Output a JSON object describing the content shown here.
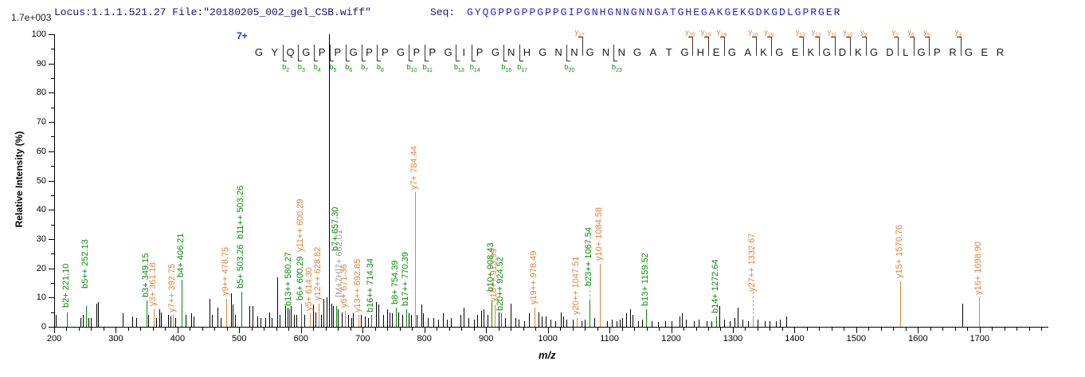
{
  "header": {
    "locus_file": "Locus:1.1.1.521.27 File:\"20180205_002_gel_CSB.wiff\"",
    "seq_label": "Seq:",
    "sequence": "GYQGPPGPPGPPGIPGNHGNNGNNGATGHEGAKGEKGDKGDLGPRGER"
  },
  "y_axis": {
    "title": "Relative  Intensity  (%)",
    "max_scale_label": "1.7e+003",
    "tick_labels": [
      0,
      10,
      20,
      30,
      40,
      50,
      60,
      70,
      80,
      90,
      100
    ],
    "minor_step": 5
  },
  "x_axis": {
    "title": "m/z",
    "tick_labels": [
      200,
      300,
      400,
      500,
      600,
      700,
      800,
      900,
      1000,
      1100,
      1200,
      1300,
      1400,
      1500,
      1600,
      1700
    ],
    "minor_step": 20,
    "range": [
      200,
      1810
    ]
  },
  "chart_data": {
    "type": "bar",
    "subtype": "ms2-spectrum",
    "title": "",
    "xlabel": "m/z",
    "ylabel": "Relative Intensity (%)",
    "xlim": [
      200,
      1810
    ],
    "ylim": [
      0,
      100
    ],
    "intensity_full_scale": "1.7e+003",
    "precursor_charge": "7+",
    "colors": {
      "b_ion": "#0b8a0b",
      "y_ion": "#e2823c",
      "precursor_label": "#9a9a9a",
      "peak": "#000000"
    },
    "labeled_peaks": [
      {
        "mz": 221.1,
        "pct": 5,
        "color": "green",
        "label": "b2+ 221.10",
        "lb": 6.5
      },
      {
        "mz": 252.13,
        "pct": 7,
        "color": "green",
        "label": "b5++ 252.13",
        "lb": 13
      },
      {
        "mz": 349.15,
        "pct": 9,
        "color": "green",
        "label": "b3+ 349.15",
        "lb": 10
      },
      {
        "mz": 361.18,
        "pct": 6,
        "color": "orange",
        "label": "y3+ 361.18",
        "lb": 7
      },
      {
        "mz": 392.75,
        "pct": 4,
        "color": "orange",
        "label": "y7++ 392.75",
        "lb": 5
      },
      {
        "mz": 406.21,
        "pct": 16,
        "color": "green",
        "label": "b4+ 406.21",
        "lb": 17
      },
      {
        "mz": 478.75,
        "pct": 9.5,
        "color": "orange",
        "label": "y9++ 478.75",
        "lb": 10.5
      },
      {
        "mz": 503.26,
        "pct": 12,
        "color": "green",
        "label": "b5+ 503.26",
        "lb": 13
      },
      {
        "mz": 503.26,
        "pct": 0,
        "color": "green",
        "label": "b11++ 503.26",
        "lb": 30,
        "noline": true
      },
      {
        "mz": 580.27,
        "pct": 6,
        "color": "green",
        "label": "b13++ 580.27",
        "lb": 7
      },
      {
        "mz": 600.29,
        "pct": 8,
        "color": "green",
        "label": "b6+ 600.29",
        "lb": 9
      },
      {
        "mz": 600.29,
        "pct": 0,
        "color": "orange",
        "label": "y11++ 600.29",
        "lb": 25.5,
        "noline": true
      },
      {
        "mz": 614.3,
        "pct": 4.5,
        "color": "orange",
        "label": "y5+ 614.30",
        "lb": 5.5
      },
      {
        "mz": 628.82,
        "pct": 8,
        "color": "orange",
        "label": "y12++ 628.82",
        "lb": 9
      },
      {
        "mz": 657.3,
        "pct": 7,
        "color": "green",
        "label": "b7+ 657.30",
        "lb": 26
      },
      {
        "mz": 663.5,
        "pct": 0,
        "color": "gray",
        "label": "[M+7H]7+ 662.01",
        "lb": 10,
        "noline": true
      },
      {
        "mz": 671.36,
        "pct": 5.5,
        "color": "orange",
        "label": "y6+ 671.36",
        "lb": 6.5
      },
      {
        "mz": 692.85,
        "pct": 4,
        "color": "orange",
        "label": "y13++ 692.85",
        "lb": 5
      },
      {
        "mz": 714.34,
        "pct": 4,
        "color": "green",
        "label": "b16++ 714.34",
        "lb": 5
      },
      {
        "mz": 754.39,
        "pct": 6.5,
        "color": "green",
        "label": "b8+ 754.39",
        "lb": 7.5
      },
      {
        "mz": 770.39,
        "pct": 6,
        "color": "green",
        "label": "b17++ 770.39",
        "lb": 7
      },
      {
        "mz": 784.44,
        "pct": 46,
        "color": "orange",
        "label": "y7+ 784.44",
        "lb": 47
      },
      {
        "mz": 908.43,
        "pct": 9,
        "color": "green",
        "label": "b10+ 908.43",
        "lb": 12
      },
      {
        "mz": 913.99,
        "pct": 7.5,
        "color": "orange",
        "label": "y18++ 913.99",
        "lb": 8.5
      },
      {
        "mz": 924.52,
        "pct": 4.5,
        "color": "green",
        "label": "b20++ 924.52",
        "lb": 5.5
      },
      {
        "mz": 978.49,
        "pct": 6.5,
        "color": "orange",
        "label": "y19++ 978.49",
        "lb": 7.5
      },
      {
        "mz": 1047.51,
        "pct": 3,
        "color": "orange",
        "label": "y20++ 1047.51",
        "lb": 4
      },
      {
        "mz": 1067.54,
        "pct": 9,
        "color": "green",
        "label": "b23++ 1067.54",
        "lb": 14,
        "leader": true
      },
      {
        "mz": 1084.58,
        "pct": 21.5,
        "color": "orange",
        "label": "y10+ 1084.58",
        "lb": 22.5
      },
      {
        "mz": 1159.52,
        "pct": 6,
        "color": "green",
        "label": "b13+ 1159.52",
        "lb": 7
      },
      {
        "mz": 1272.64,
        "pct": 3.5,
        "color": "green",
        "label": "b14+ 1272.64",
        "lb": 4.5
      },
      {
        "mz": 1332.67,
        "pct": 3,
        "color": "orange",
        "label": "y27++ 1332.67",
        "lb": 12,
        "leader": true
      },
      {
        "mz": 1570.76,
        "pct": 15.5,
        "color": "orange",
        "label": "y15+ 1570.76",
        "lb": 16.5
      },
      {
        "mz": 1698.9,
        "pct": 10,
        "color": "orange",
        "label": "y16+ 1698.90",
        "lb": 11
      }
    ],
    "unlabeled_peaks": [
      [
        203,
        4
      ],
      [
        243,
        3
      ],
      [
        247,
        4
      ],
      [
        256,
        3
      ],
      [
        259,
        3
      ],
      [
        268,
        8
      ],
      [
        271,
        8.5
      ],
      [
        311,
        4.5
      ],
      [
        327,
        3.5
      ],
      [
        333,
        3
      ],
      [
        352,
        4
      ],
      [
        365,
        3
      ],
      [
        370,
        6
      ],
      [
        373,
        5
      ],
      [
        385,
        4
      ],
      [
        389,
        3.5
      ],
      [
        396,
        3
      ],
      [
        413,
        4
      ],
      [
        422,
        4.5
      ],
      [
        426,
        3.5
      ],
      [
        452,
        9.5
      ],
      [
        456,
        4
      ],
      [
        465,
        6.5
      ],
      [
        470,
        3
      ],
      [
        486,
        11.5
      ],
      [
        489,
        7.5
      ],
      [
        493,
        4
      ],
      [
        516,
        7
      ],
      [
        522,
        7
      ],
      [
        529,
        3.5
      ],
      [
        535,
        3
      ],
      [
        542,
        3
      ],
      [
        548,
        5
      ],
      [
        552,
        3
      ],
      [
        561,
        17
      ],
      [
        566,
        4
      ],
      [
        575,
        7
      ],
      [
        578,
        6.5
      ],
      [
        583,
        7
      ],
      [
        588,
        4
      ],
      [
        592,
        4
      ],
      [
        605,
        4
      ],
      [
        619,
        7.5
      ],
      [
        623,
        5
      ],
      [
        633,
        4
      ],
      [
        637,
        9.5
      ],
      [
        641,
        10
      ],
      [
        645.5,
        100
      ],
      [
        649,
        8
      ],
      [
        652,
        7
      ],
      [
        660,
        6
      ],
      [
        666,
        5
      ],
      [
        677,
        4
      ],
      [
        681,
        3
      ],
      [
        684,
        4.5
      ],
      [
        697,
        4
      ],
      [
        703,
        3.5
      ],
      [
        709,
        3
      ],
      [
        722,
        8.5
      ],
      [
        726,
        7.5
      ],
      [
        733,
        4
      ],
      [
        740,
        6
      ],
      [
        744,
        5
      ],
      [
        748,
        4.5
      ],
      [
        758,
        5
      ],
      [
        764,
        4
      ],
      [
        774,
        4.5
      ],
      [
        778,
        4
      ],
      [
        788,
        4
      ],
      [
        795,
        7.5
      ],
      [
        798,
        4.5
      ],
      [
        806,
        3
      ],
      [
        814,
        3
      ],
      [
        822,
        2.5
      ],
      [
        830,
        4.5
      ],
      [
        836,
        2.5
      ],
      [
        843,
        3
      ],
      [
        858,
        4
      ],
      [
        864,
        6.5
      ],
      [
        871,
        3
      ],
      [
        880,
        2.5
      ],
      [
        886,
        4
      ],
      [
        892,
        5.5
      ],
      [
        896,
        6
      ],
      [
        902,
        4
      ],
      [
        920,
        5
      ],
      [
        931,
        3
      ],
      [
        940,
        8
      ],
      [
        947,
        3
      ],
      [
        953,
        2.5
      ],
      [
        962,
        2
      ],
      [
        970,
        4.5
      ],
      [
        985,
        5
      ],
      [
        990,
        3.5
      ],
      [
        996,
        3.5
      ],
      [
        1004,
        2.5
      ],
      [
        1012,
        2
      ],
      [
        1021,
        5
      ],
      [
        1025,
        3.5
      ],
      [
        1030,
        2.5
      ],
      [
        1040,
        2.5
      ],
      [
        1055,
        2
      ],
      [
        1060,
        2.5
      ],
      [
        1075,
        3
      ],
      [
        1096,
        2
      ],
      [
        1104,
        2.5
      ],
      [
        1112,
        2
      ],
      [
        1117,
        2.5
      ],
      [
        1121,
        3
      ],
      [
        1127,
        4.5
      ],
      [
        1134,
        6
      ],
      [
        1137,
        4
      ],
      [
        1146,
        2
      ],
      [
        1153,
        2.5
      ],
      [
        1168,
        2
      ],
      [
        1179,
        1.5
      ],
      [
        1190,
        2
      ],
      [
        1200,
        2
      ],
      [
        1213,
        3.5
      ],
      [
        1218,
        4.5
      ],
      [
        1224,
        2.5
      ],
      [
        1237,
        2
      ],
      [
        1245,
        2.5
      ],
      [
        1258,
        2
      ],
      [
        1265,
        2
      ],
      [
        1278,
        7
      ],
      [
        1286,
        2.5
      ],
      [
        1295,
        2
      ],
      [
        1302,
        3
      ],
      [
        1308,
        6.5
      ],
      [
        1316,
        2.5
      ],
      [
        1325,
        2
      ],
      [
        1340,
        2.5
      ],
      [
        1352,
        2
      ],
      [
        1360,
        2
      ],
      [
        1370,
        2
      ],
      [
        1376,
        2.5
      ],
      [
        1387,
        3.5
      ],
      [
        1672,
        8
      ]
    ],
    "sequence_ladder": {
      "residues": "GYQGPPGPPGPPGIPGNHGNNGNNGATGHEGAKGEKGDKGDLGPRGER",
      "b_ticks": [
        {
          "gap": 2,
          "n": "2"
        },
        {
          "gap": 3,
          "n": "3"
        },
        {
          "gap": 4,
          "n": "4"
        },
        {
          "gap": 5,
          "n": "5"
        },
        {
          "gap": 6,
          "n": "6"
        },
        {
          "gap": 7,
          "n": "7"
        },
        {
          "gap": 8,
          "n": "8"
        },
        {
          "gap": 10,
          "n": "10"
        },
        {
          "gap": 11,
          "n": "11"
        },
        {
          "gap": 13,
          "n": "13"
        },
        {
          "gap": 14,
          "n": "14"
        },
        {
          "gap": 16,
          "n": "16"
        },
        {
          "gap": 17,
          "n": "17"
        },
        {
          "gap": 20,
          "n": "20"
        },
        {
          "gap": 23,
          "n": "23"
        }
      ],
      "y_ticks": [
        {
          "gap": 21,
          "n": "27"
        },
        {
          "gap": 28,
          "n": "20"
        },
        {
          "gap": 29,
          "n": "19"
        },
        {
          "gap": 30,
          "n": "18"
        },
        {
          "gap": 32,
          "n": "16"
        },
        {
          "gap": 33,
          "n": "15"
        },
        {
          "gap": 35,
          "n": "13"
        },
        {
          "gap": 36,
          "n": "12"
        },
        {
          "gap": 37,
          "n": "11"
        },
        {
          "gap": 38,
          "n": "10"
        },
        {
          "gap": 39,
          "n": "9"
        },
        {
          "gap": 41,
          "n": "7"
        },
        {
          "gap": 42,
          "n": "6"
        },
        {
          "gap": 43,
          "n": "5"
        },
        {
          "gap": 45,
          "n": "3"
        }
      ]
    }
  }
}
